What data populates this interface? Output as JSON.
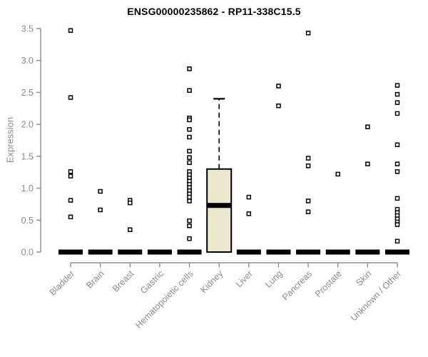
{
  "chart_data": {
    "type": "box",
    "title": "ENSG00000235862 - RP11-338C15.5",
    "ylabel": "Expression",
    "xlabel": "",
    "ylim": [
      0,
      3.5
    ],
    "ytick_labels": [
      "0.0",
      "0.5",
      "1.0",
      "1.5",
      "2.0",
      "2.5",
      "3.0",
      "3.5"
    ],
    "grid": false,
    "legend": "none",
    "categories": [
      "Bladder",
      "Brain",
      "Breast",
      "Gastric",
      "Hematopoietic cells",
      "Kidney",
      "Liver",
      "Lung",
      "Pancreas",
      "Prostate",
      "Skin",
      "Unknown / Other"
    ],
    "colors": {
      "box_fill": "#ECE8CD",
      "box_border": "#000000",
      "median": "#000000",
      "axis": "#8c8c8c",
      "tick_label": "#8c8c8c",
      "title": "#000000",
      "outlier_fill": "#ffffff",
      "outlier_border": "#000000"
    },
    "boxes": [
      {
        "category": "Bladder",
        "q1": 0,
        "median": 0,
        "q3": 0,
        "whisker_low": 0,
        "whisker_high": 0,
        "outliers": [
          3.47,
          2.42,
          1.26,
          1.19,
          0.81,
          0.55
        ]
      },
      {
        "category": "Brain",
        "q1": 0,
        "median": 0,
        "q3": 0,
        "whisker_low": 0,
        "whisker_high": 0,
        "outliers": [
          0.95,
          0.66
        ]
      },
      {
        "category": "Breast",
        "q1": 0,
        "median": 0,
        "q3": 0,
        "whisker_low": 0,
        "whisker_high": 0,
        "outliers": [
          0.81,
          0.77,
          0.35
        ]
      },
      {
        "category": "Gastric",
        "q1": 0,
        "median": 0,
        "q3": 0,
        "whisker_low": 0,
        "whisker_high": 0,
        "outliers": []
      },
      {
        "category": "Hematopoietic cells",
        "q1": 0,
        "median": 0,
        "q3": 0,
        "whisker_low": 0,
        "whisker_high": 0,
        "outliers": [
          2.87,
          2.53,
          2.1,
          2.07,
          1.92,
          1.8,
          1.58,
          1.48,
          1.4,
          1.26,
          1.21,
          1.16,
          1.11,
          1.06,
          1.01,
          0.96,
          0.91,
          0.86,
          0.8,
          0.49,
          0.41,
          0.21
        ]
      },
      {
        "category": "Kidney",
        "q1": 0,
        "median": 0.73,
        "q3": 1.3,
        "whisker_low": 0,
        "whisker_high": 2.4,
        "outliers": []
      },
      {
        "category": "Liver",
        "q1": 0,
        "median": 0,
        "q3": 0,
        "whisker_low": 0,
        "whisker_high": 0,
        "outliers": [
          0.86,
          0.6
        ]
      },
      {
        "category": "Lung",
        "q1": 0,
        "median": 0,
        "q3": 0,
        "whisker_low": 0,
        "whisker_high": 0,
        "outliers": [
          2.6,
          2.29
        ]
      },
      {
        "category": "Pancreas",
        "q1": 0,
        "median": 0,
        "q3": 0,
        "whisker_low": 0,
        "whisker_high": 0,
        "outliers": [
          3.43,
          1.47,
          1.35,
          0.8,
          0.63
        ]
      },
      {
        "category": "Prostate",
        "q1": 0,
        "median": 0,
        "q3": 0,
        "whisker_low": 0,
        "whisker_high": 0,
        "outliers": [
          1.22
        ]
      },
      {
        "category": "Skin",
        "q1": 0,
        "median": 0,
        "q3": 0,
        "whisker_low": 0,
        "whisker_high": 0,
        "outliers": [
          1.96,
          1.38
        ]
      },
      {
        "category": "Unknown / Other",
        "q1": 0,
        "median": 0,
        "q3": 0,
        "whisker_low": 0,
        "whisker_high": 0,
        "outliers": [
          2.61,
          2.47,
          2.34,
          2.17,
          1.68,
          1.38,
          1.26,
          0.84,
          0.67,
          0.62,
          0.57,
          0.52,
          0.47,
          0.43,
          0.17
        ]
      }
    ]
  }
}
